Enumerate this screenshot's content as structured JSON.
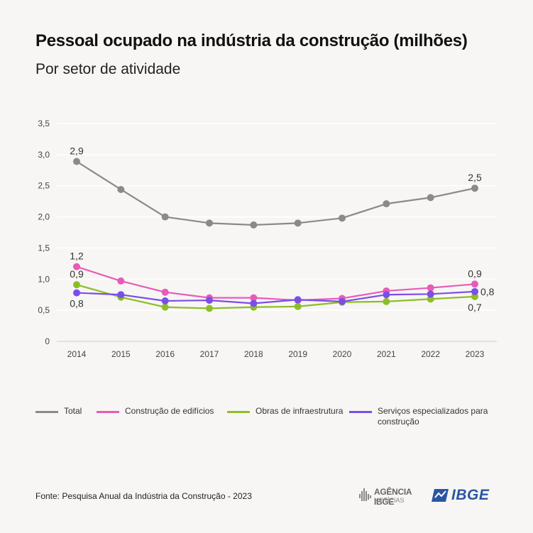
{
  "title": "Pessoal ocupado na indústria da construção (milhões)",
  "subtitle": "Por setor de atividade",
  "footer": "Fonte: Pesquisa Anual da Indústria da Construção - 2023",
  "brand": {
    "agencia_main": "AGÊNCIA IBGE",
    "agencia_sub": "NOTÍCIAS",
    "ibge": "IBGE"
  },
  "chart_data": {
    "type": "line",
    "x": [
      "2014",
      "2015",
      "2016",
      "2017",
      "2018",
      "2019",
      "2020",
      "2021",
      "2022",
      "2023"
    ],
    "ylim": [
      0,
      3.5
    ],
    "yticks": [
      0,
      0.5,
      1.0,
      1.5,
      2.0,
      2.5,
      3.0,
      3.5
    ],
    "ytick_labels": [
      "0",
      "0,5",
      "1,0",
      "1,5",
      "2,0",
      "2,5",
      "3,0",
      "3,5"
    ],
    "grid": true,
    "legend_position": "bottom",
    "series": [
      {
        "name": "Total",
        "color": "#8a8a8a",
        "values": [
          2.89,
          2.44,
          2.0,
          1.9,
          1.87,
          1.9,
          1.98,
          2.21,
          2.31,
          2.46
        ],
        "labels": [
          {
            "index": 0,
            "text": "2,9",
            "pos": "above"
          },
          {
            "index": 9,
            "text": "2,5",
            "pos": "above"
          }
        ]
      },
      {
        "name": "Construção de edifícios",
        "color": "#e85bb8",
        "values": [
          1.2,
          0.97,
          0.79,
          0.7,
          0.7,
          0.66,
          0.69,
          0.81,
          0.86,
          0.92
        ],
        "labels": [
          {
            "index": 0,
            "text": "1,2",
            "pos": "above"
          },
          {
            "index": 9,
            "text": "0,9",
            "pos": "above"
          }
        ]
      },
      {
        "name": "Obras de infraestrutura",
        "color": "#8cbf26",
        "values": [
          0.91,
          0.71,
          0.55,
          0.53,
          0.55,
          0.56,
          0.63,
          0.64,
          0.68,
          0.72
        ],
        "labels": [
          {
            "index": 0,
            "text": "0,9",
            "pos": "above"
          },
          {
            "index": 9,
            "text": "0,7",
            "pos": "below"
          }
        ]
      },
      {
        "name": "Serviços especializados para construção",
        "color": "#7c4ee8",
        "values": [
          0.78,
          0.75,
          0.65,
          0.66,
          0.61,
          0.67,
          0.64,
          0.75,
          0.76,
          0.8
        ],
        "labels": [
          {
            "index": 0,
            "text": "0,8",
            "pos": "below"
          },
          {
            "index": 9,
            "text": "0,8",
            "pos": "right"
          }
        ]
      }
    ]
  }
}
